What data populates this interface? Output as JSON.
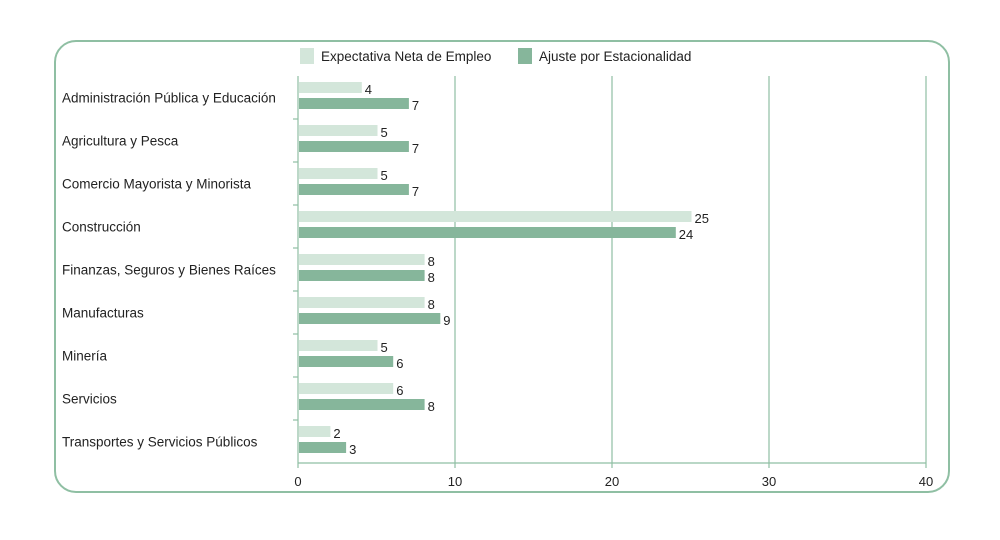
{
  "chart_data": {
    "type": "bar",
    "orientation": "horizontal",
    "title": "",
    "xlabel": "",
    "ylabel": "",
    "categories": [
      "Administración Pública y Educación",
      "Agricultura y Pesca",
      "Comercio Mayorista y Minorista",
      "Construcción",
      "Finanzas, Seguros y Bienes Raíces",
      "Manufacturas",
      "Minería",
      "Servicios",
      "Transportes y Servicios Públicos"
    ],
    "series": [
      {
        "name": "Expectativa Neta de Empleo",
        "color": "#d3e6da",
        "values": [
          4,
          5,
          5,
          25,
          8,
          8,
          5,
          6,
          2
        ]
      },
      {
        "name": "Ajuste por Estacionalidad",
        "color": "#86b69b",
        "values": [
          7,
          7,
          7,
          24,
          8,
          9,
          6,
          8,
          3
        ]
      }
    ],
    "xlim": [
      0,
      40
    ],
    "xticks": [
      "0",
      "10",
      "20",
      "30",
      "40"
    ],
    "grid": true,
    "legend": "top"
  }
}
